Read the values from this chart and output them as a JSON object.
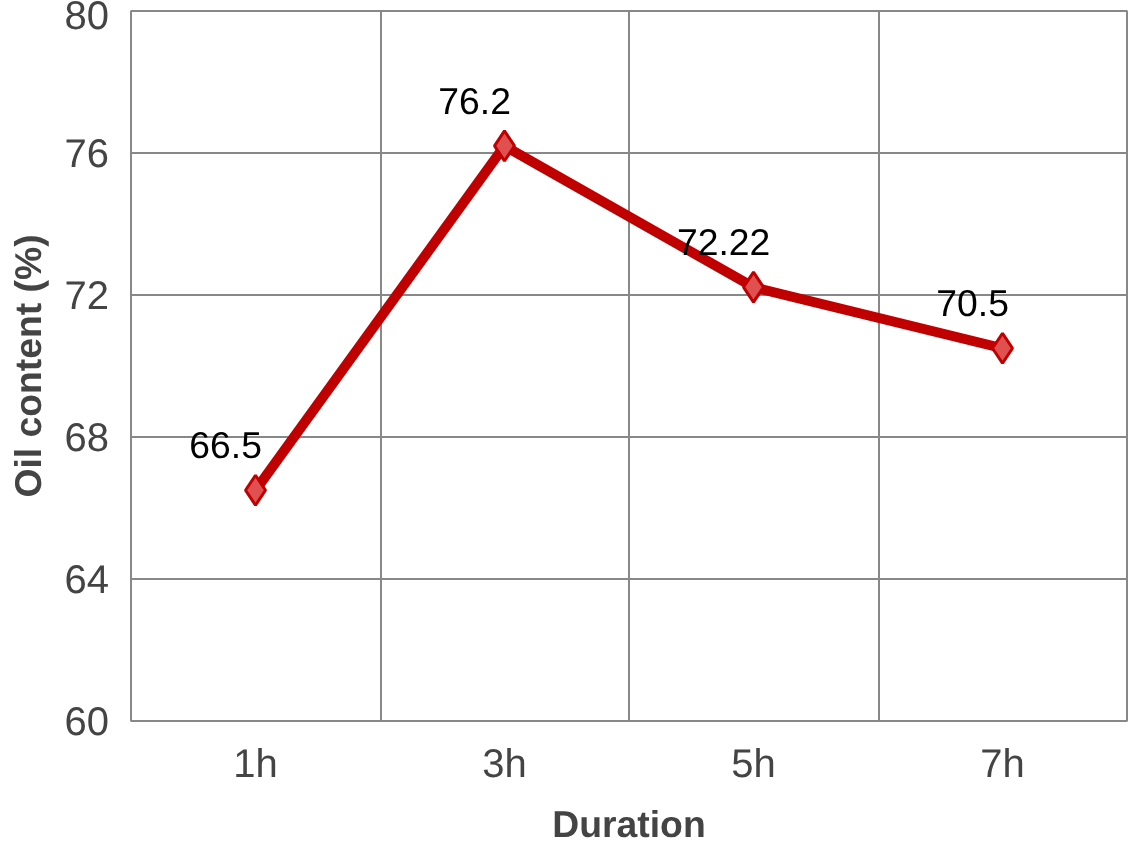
{
  "chart_data": {
    "type": "line",
    "xlabel": "Duration",
    "ylabel": "Oil content (%)",
    "categories": [
      "1h",
      "3h",
      "5h",
      "7h"
    ],
    "series": [
      {
        "color": "#c00000",
        "values": [
          66.5,
          76.2,
          72.22,
          70.5
        ]
      }
    ],
    "ylim": [
      60,
      80
    ],
    "yticks": [
      60,
      64,
      68,
      72,
      76,
      80
    ],
    "grid": true,
    "marker": "diamond",
    "line_style": "solid",
    "data_labels": true
  }
}
